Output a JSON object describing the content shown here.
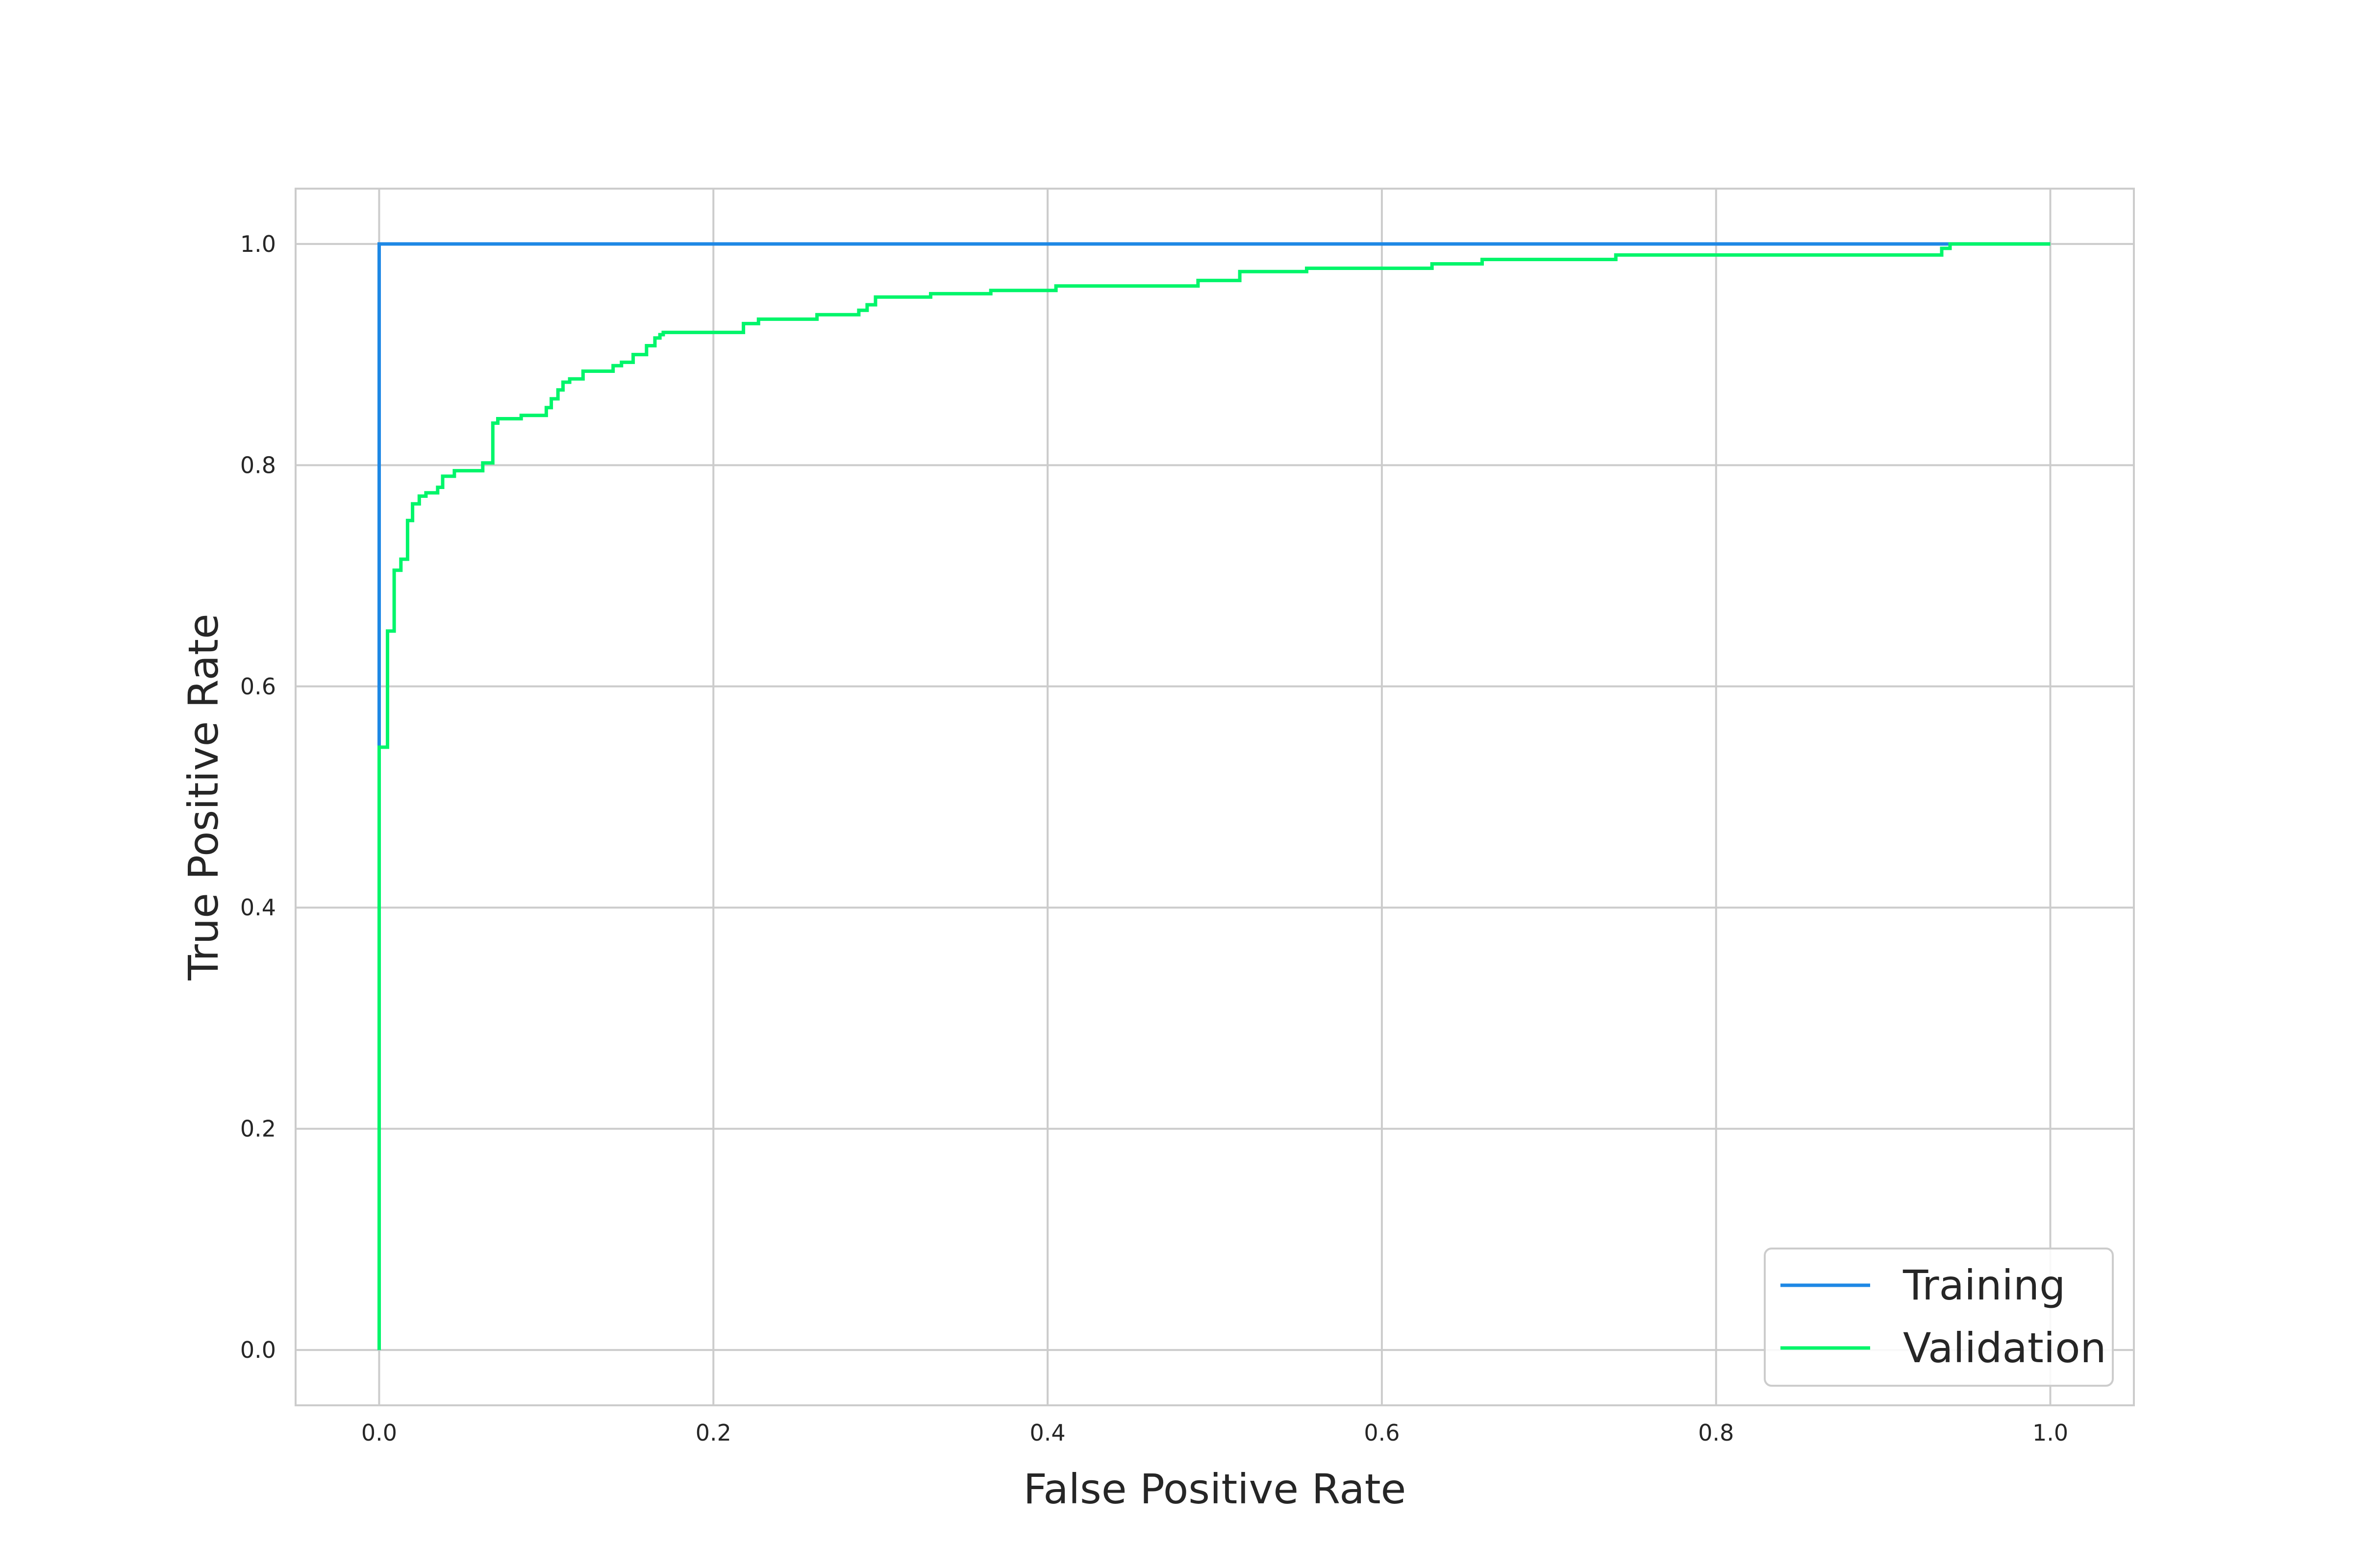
{
  "chart_data": {
    "type": "line",
    "title": "",
    "xlabel": "False Positive Rate",
    "ylabel": "True Positive Rate",
    "xlim": [
      -0.05,
      1.05
    ],
    "ylim": [
      -0.05,
      1.05
    ],
    "xticks": [
      0.0,
      0.2,
      0.4,
      0.6,
      0.8,
      1.0
    ],
    "xtick_labels": [
      "0.0",
      "0.2",
      "0.4",
      "0.6",
      "0.8",
      "1.0"
    ],
    "yticks": [
      0.0,
      0.2,
      0.4,
      0.6,
      0.8,
      1.0
    ],
    "ytick_labels": [
      "0.0",
      "0.2",
      "0.4",
      "0.6",
      "0.8",
      "1.0"
    ],
    "grid": true,
    "legend_position": "lower-right",
    "series": [
      {
        "name": "Training",
        "color": "#1e88e5",
        "x": [
          0,
          0,
          0,
          0.94,
          0.94,
          1.0
        ],
        "y": [
          0,
          0.545,
          1.0,
          1.0,
          1.0,
          1.0
        ]
      },
      {
        "name": "Validation",
        "color": "#00f56a",
        "x": [
          0,
          0,
          0.005,
          0.005,
          0.009,
          0.009,
          0.013,
          0.013,
          0.017,
          0.017,
          0.02,
          0.02,
          0.024,
          0.024,
          0.028,
          0.028,
          0.035,
          0.035,
          0.038,
          0.038,
          0.045,
          0.045,
          0.055,
          0.055,
          0.062,
          0.062,
          0.068,
          0.068,
          0.071,
          0.071,
          0.085,
          0.085,
          0.1,
          0.1,
          0.103,
          0.103,
          0.107,
          0.107,
          0.11,
          0.11,
          0.114,
          0.114,
          0.122,
          0.122,
          0.14,
          0.14,
          0.145,
          0.145,
          0.152,
          0.152,
          0.16,
          0.16,
          0.165,
          0.165,
          0.168,
          0.168,
          0.17,
          0.17,
          0.218,
          0.218,
          0.227,
          0.227,
          0.262,
          0.262,
          0.287,
          0.287,
          0.292,
          0.292,
          0.297,
          0.297,
          0.33,
          0.33,
          0.366,
          0.366,
          0.405,
          0.405,
          0.49,
          0.49,
          0.515,
          0.515,
          0.555,
          0.555,
          0.63,
          0.63,
          0.66,
          0.66,
          0.74,
          0.74,
          0.935,
          0.935,
          0.94,
          0.94,
          1.0
        ],
        "y": [
          0,
          0.545,
          0.545,
          0.65,
          0.65,
          0.705,
          0.705,
          0.715,
          0.715,
          0.75,
          0.75,
          0.765,
          0.765,
          0.772,
          0.772,
          0.775,
          0.775,
          0.78,
          0.78,
          0.79,
          0.79,
          0.795,
          0.795,
          0.795,
          0.795,
          0.802,
          0.802,
          0.838,
          0.838,
          0.842,
          0.842,
          0.845,
          0.845,
          0.852,
          0.852,
          0.86,
          0.86,
          0.868,
          0.868,
          0.875,
          0.875,
          0.878,
          0.878,
          0.885,
          0.885,
          0.89,
          0.89,
          0.893,
          0.893,
          0.9,
          0.9,
          0.908,
          0.908,
          0.915,
          0.915,
          0.918,
          0.918,
          0.92,
          0.92,
          0.928,
          0.928,
          0.932,
          0.932,
          0.936,
          0.936,
          0.94,
          0.94,
          0.945,
          0.945,
          0.952,
          0.952,
          0.955,
          0.955,
          0.958,
          0.958,
          0.962,
          0.962,
          0.967,
          0.967,
          0.975,
          0.975,
          0.978,
          0.978,
          0.982,
          0.982,
          0.986,
          0.986,
          0.99,
          0.99,
          0.996,
          0.996,
          1.0,
          1.0
        ]
      }
    ]
  }
}
